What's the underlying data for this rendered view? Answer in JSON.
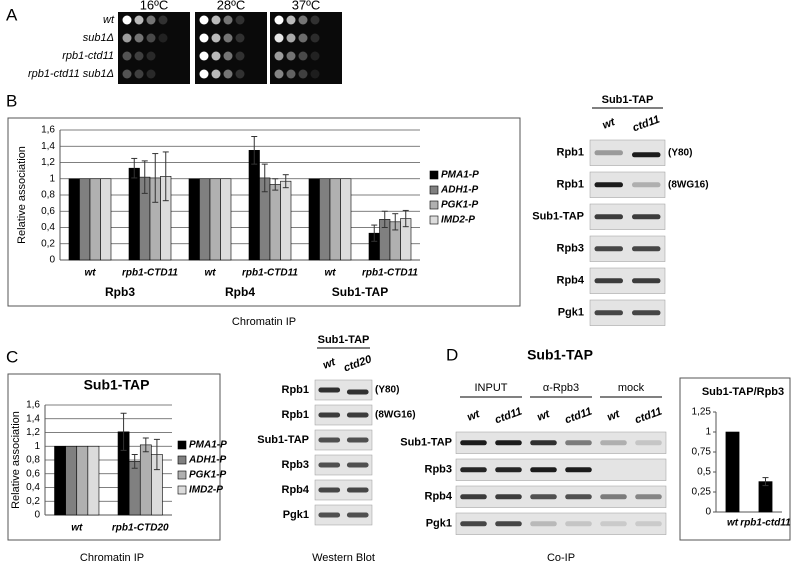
{
  "panels": [
    "A",
    "B",
    "C",
    "D"
  ],
  "panel_a": {
    "temperatures": [
      "16ºC",
      "28ºC",
      "37ºC"
    ],
    "strains": [
      "wt",
      "sub1Δ",
      "rpb1-ctd11",
      "rpb1-ctd11 sub1Δ"
    ]
  },
  "chart_data": [
    {
      "type": "bar",
      "ylabel": "Relative association",
      "xlabel": "Chromatin IP",
      "categories": [
        "wt",
        "rpb1-CTD11",
        "wt",
        "rpb1-CTD11",
        "wt",
        "rpb1-CTD11"
      ],
      "groups": [
        "Rpb3",
        "Rpb4",
        "Sub1-TAP"
      ],
      "ylim": [
        0,
        1.6
      ],
      "yticks": [
        0,
        {
          "value": 0.2,
          "label": "0,2"
        },
        {
          "value": 0.4,
          "label": "0,4"
        },
        {
          "value": 0.6,
          "label": "0,6"
        },
        {
          "value": 0.8,
          "label": "0,8"
        },
        1,
        {
          "value": 1.2,
          "label": "1,2"
        },
        {
          "value": 1.4,
          "label": "1,4"
        },
        {
          "value": 1.6,
          "label": "1,6"
        }
      ],
      "grid": true,
      "legend": "right",
      "series": [
        {
          "name": "PMA1-P",
          "color": "#000000",
          "values": [
            1,
            1.13,
            1,
            1.35,
            1,
            0.33
          ],
          "errors": [
            null,
            0.12,
            null,
            0.17,
            null,
            0.1
          ]
        },
        {
          "name": "ADH1-P",
          "color": "#808080",
          "values": [
            1,
            1.02,
            1,
            1.01,
            1,
            0.5
          ],
          "errors": [
            null,
            0.2,
            null,
            0.17,
            null,
            0.1
          ]
        },
        {
          "name": "PGK1-P",
          "color": "#b0b0b0",
          "values": [
            1,
            1.01,
            1,
            0.93,
            1,
            0.47
          ],
          "errors": [
            null,
            0.3,
            null,
            0.07,
            null,
            0.1
          ]
        },
        {
          "name": "IMD2-P",
          "color": "#dcdcdc",
          "values": [
            1,
            1.03,
            1,
            0.97,
            1,
            0.51
          ],
          "errors": [
            null,
            0.3,
            null,
            0.08,
            null,
            0.1
          ]
        }
      ]
    },
    {
      "type": "bar",
      "title": "Sub1-TAP",
      "ylabel": "Relative association",
      "xlabel": "Chromatin IP",
      "categories": [
        "wt",
        "rpb1-CTD20"
      ],
      "ylim": [
        0,
        1.6
      ],
      "yticks": [
        0,
        {
          "value": 0.2,
          "label": "0,2"
        },
        {
          "value": 0.4,
          "label": "0,4"
        },
        {
          "value": 0.6,
          "label": "0,6"
        },
        {
          "value": 0.8,
          "label": "0,8"
        },
        1,
        {
          "value": 1.2,
          "label": "1,2"
        },
        {
          "value": 1.4,
          "label": "1,4"
        },
        {
          "value": 1.6,
          "label": "1,6"
        }
      ],
      "grid": true,
      "legend": "right",
      "series": [
        {
          "name": "PMA1-P",
          "color": "#000000",
          "values": [
            1,
            1.21
          ],
          "errors": [
            null,
            0.27
          ]
        },
        {
          "name": "ADH1-P",
          "color": "#808080",
          "values": [
            1,
            0.78
          ],
          "errors": [
            null,
            0.1
          ]
        },
        {
          "name": "PGK1-P",
          "color": "#b0b0b0",
          "values": [
            1,
            1.02
          ],
          "errors": [
            null,
            0.1
          ]
        },
        {
          "name": "IMD2-P",
          "color": "#dcdcdc",
          "values": [
            1,
            0.88
          ],
          "errors": [
            null,
            0.22
          ]
        }
      ]
    },
    {
      "type": "bar",
      "title": "Sub1-TAP/Rpb3",
      "categories": [
        "wt",
        "rpb1-ctd11"
      ],
      "values": [
        1,
        0.38
      ],
      "errors": [
        null,
        0.05
      ],
      "color": "#000000",
      "ylim": [
        0,
        1.25
      ],
      "yticks": [
        0,
        {
          "value": 0.25,
          "label": "0,25"
        },
        {
          "value": 0.5,
          "label": "0,5"
        },
        {
          "value": 0.75,
          "label": "0,75"
        },
        1,
        {
          "value": 1.25,
          "label": "1,25"
        }
      ],
      "grid": false
    }
  ],
  "blot_b": {
    "title": "Sub1-TAP",
    "lanes": [
      "wt",
      "ctd11"
    ],
    "rows": [
      {
        "label": "Rpb1",
        "antibody": "(Y80)"
      },
      {
        "label": "Rpb1",
        "antibody": "(8WG16)"
      },
      {
        "label": "Sub1-TAP"
      },
      {
        "label": "Rpb3"
      },
      {
        "label": "Rpb4"
      },
      {
        "label": "Pgk1"
      }
    ]
  },
  "blot_c": {
    "title": "Sub1-TAP",
    "lanes": [
      "wt",
      "ctd20"
    ],
    "caption": "Western Blot",
    "rows": [
      {
        "label": "Rpb1",
        "antibody": "(Y80)"
      },
      {
        "label": "Rpb1",
        "antibody": "(8WG16)"
      },
      {
        "label": "Sub1-TAP"
      },
      {
        "label": "Rpb3"
      },
      {
        "label": "Rpb4"
      },
      {
        "label": "Pgk1"
      }
    ]
  },
  "blot_d": {
    "title": "Sub1-TAP",
    "groups": [
      "INPUT",
      "α-Rpb3",
      "mock"
    ],
    "lanes": [
      "wt",
      "ctd11",
      "wt",
      "ctd11",
      "wt",
      "ctd11"
    ],
    "rows": [
      "Sub1-TAP",
      "Rpb3",
      "Rpb4",
      "Pgk1"
    ],
    "caption": "Co-IP"
  }
}
